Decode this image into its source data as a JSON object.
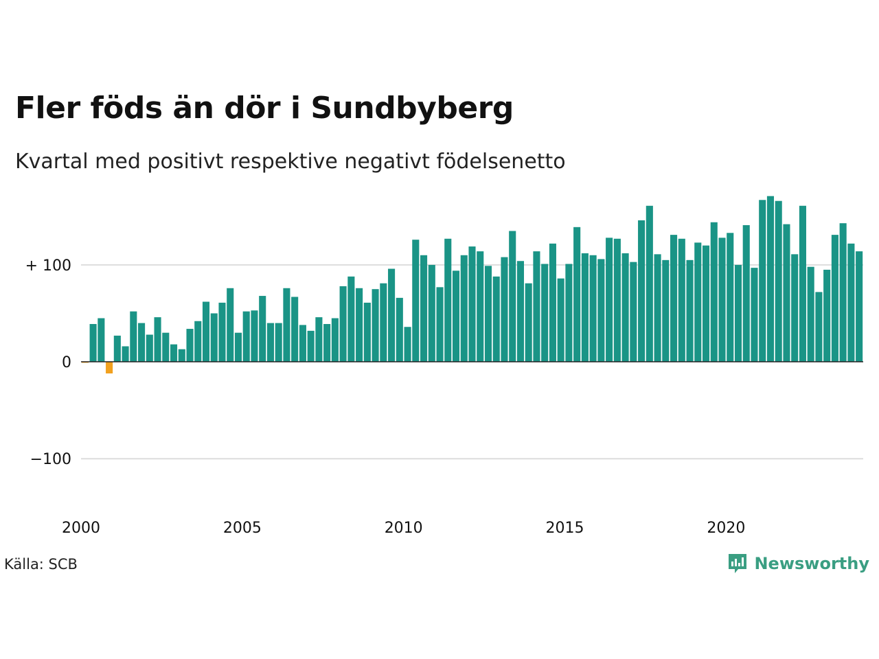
{
  "title": "Fler föds än dör i Sundbyberg",
  "subtitle": "Kvartal med positivt respektive negativt födelsenetto",
  "source": "Källa: SCB",
  "brand": {
    "name": "Newsworthy",
    "icon": "newsworthy-logo-icon",
    "color": "#3a9e82"
  },
  "colors": {
    "positive": "#1a9486",
    "negative": "#f2a11f",
    "grid": "#dddddd",
    "baseline": "#222222"
  },
  "chart_data": {
    "type": "bar",
    "title": "Fler föds än dör i Sundbyberg",
    "subtitle": "Kvartal med positivt respektive negativt födelsenetto",
    "xlabel": "",
    "ylabel": "",
    "start_year": 2000,
    "x_ticks": [
      "2000",
      "2005",
      "2010",
      "2015",
      "2020"
    ],
    "y_ticks": [
      {
        "value": 100,
        "label": "+ 100"
      },
      {
        "value": 0,
        "label": "0"
      },
      {
        "value": -100,
        "label": "−100"
      }
    ],
    "ylim": [
      -165,
      175
    ],
    "grid": true,
    "values": [
      -1,
      39,
      45,
      -12,
      27,
      16,
      52,
      40,
      28,
      46,
      30,
      18,
      13,
      34,
      42,
      62,
      50,
      61,
      76,
      30,
      52,
      53,
      68,
      40,
      40,
      76,
      67,
      38,
      32,
      46,
      39,
      45,
      78,
      88,
      76,
      61,
      75,
      81,
      96,
      66,
      36,
      126,
      110,
      100,
      77,
      127,
      94,
      110,
      119,
      114,
      99,
      88,
      108,
      135,
      104,
      81,
      114,
      101,
      122,
      86,
      101,
      139,
      112,
      110,
      106,
      128,
      127,
      112,
      103,
      146,
      161,
      111,
      105,
      131,
      127,
      105,
      123,
      120,
      144,
      128,
      133,
      100,
      141,
      97,
      167,
      171,
      166,
      142,
      111,
      161,
      98,
      72,
      95,
      131,
      143,
      122,
      114
    ]
  }
}
